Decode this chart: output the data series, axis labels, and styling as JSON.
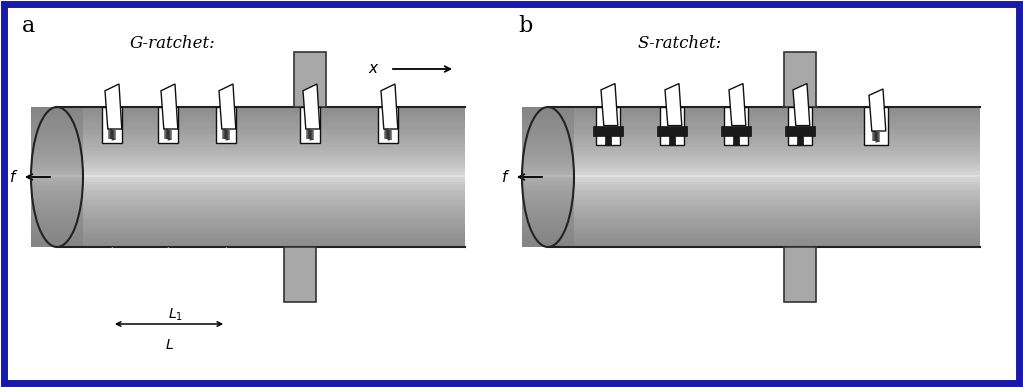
{
  "bg_color": "#ffffff",
  "border_color": "#1a1aaa",
  "label_a": "a",
  "label_b": "b",
  "title_a": "G-ratchet:",
  "title_b": "S-ratchet:",
  "tube_gray_light": 0.88,
  "tube_gray_mid": 0.72,
  "tube_gray_dark": 0.55,
  "support_gray": "#a0a0a0",
  "blade_fill": "#ffffff",
  "blade_edge": "#111111",
  "notch_fill": "#f0f0f0",
  "bar_fill": "#1a1a1a"
}
